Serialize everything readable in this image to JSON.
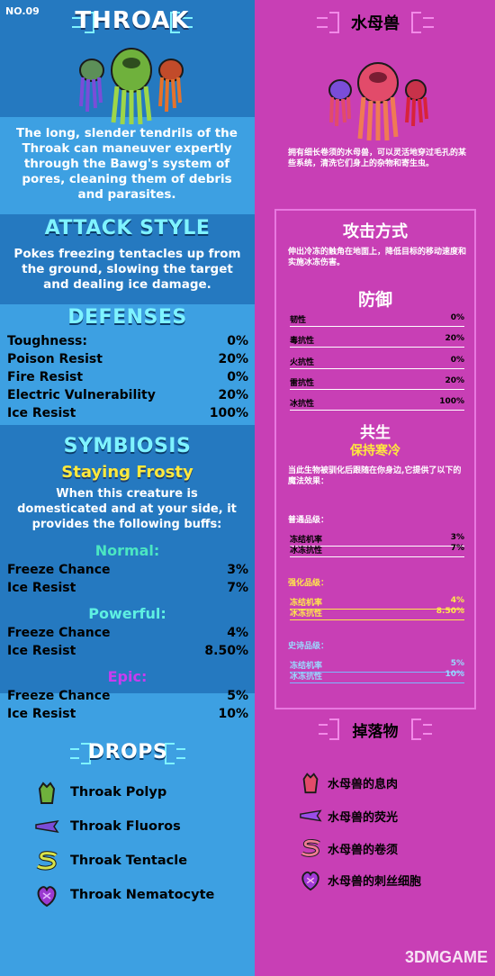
{
  "left": {
    "number": "NO.09",
    "title": "THROAK",
    "description": "The long, slender tendrils of the Throak can maneuver expertly through the Bawg's system of pores, cleaning them of debris and parasites.",
    "attack_style": {
      "heading": "ATTACK STYLE",
      "text": "Pokes freezing tentacles up from the ground, slowing the target and dealing ice damage."
    },
    "defenses": {
      "heading": "DEFENSES",
      "rows": [
        {
          "label": "Toughness:",
          "value": "0%"
        },
        {
          "label": "Poison Resist",
          "value": "20%"
        },
        {
          "label": "Fire Resist",
          "value": "0%"
        },
        {
          "label": "Electric Vulnerability",
          "value": "20%"
        },
        {
          "label": "Ice Resist",
          "value": "100%"
        }
      ]
    },
    "symbiosis": {
      "heading": "SYMBIOSIS",
      "name": "Staying Frosty",
      "text": "When this creature is domesticated and at your side, it provides the following buffs:",
      "tiers": [
        {
          "name": "Normal:",
          "rows": [
            {
              "label": "Freeze Chance",
              "value": "3%"
            },
            {
              "label": "Ice Resist",
              "value": "7%"
            }
          ]
        },
        {
          "name": "Powerful:",
          "rows": [
            {
              "label": "Freeze Chance",
              "value": "4%"
            },
            {
              "label": "Ice Resist",
              "value": "8.50%"
            }
          ]
        },
        {
          "name": "Epic:",
          "rows": [
            {
              "label": "Freeze Chance",
              "value": "5%"
            },
            {
              "label": "Ice Resist",
              "value": "10%"
            }
          ]
        }
      ]
    },
    "drops": {
      "heading": "DROPS",
      "items": [
        {
          "label": "Throak Polyp",
          "icon": "polyp-icon",
          "color": "#6fb13c"
        },
        {
          "label": "Throak Fluoros",
          "icon": "fluoros-icon",
          "color": "#7a4dd8"
        },
        {
          "label": "Throak Tentacle",
          "icon": "tentacle-icon",
          "color": "#d7e34a"
        },
        {
          "label": "Throak Nematocyte",
          "icon": "nematocyte-icon",
          "color": "#9b3ad0"
        }
      ]
    }
  },
  "right": {
    "title": "水母兽",
    "description": "拥有细长卷须的水母兽，可以灵活地穿过毛孔的某些系统，清洗它们身上的杂物和寄生虫。",
    "attack_style": {
      "heading": "攻击方式",
      "text": "伸出冷冻的触角在地面上，降低目标的移动速度和实施冰冻伤害。"
    },
    "defenses": {
      "heading": "防御",
      "rows": [
        {
          "label": "韧性",
          "value": "0%"
        },
        {
          "label": "毒抗性",
          "value": "20%"
        },
        {
          "label": "火抗性",
          "value": "0%"
        },
        {
          "label": "雷抗性",
          "value": "20%"
        },
        {
          "label": "冰抗性",
          "value": "100%"
        }
      ]
    },
    "symbiosis": {
      "heading": "共生",
      "name": "保持寒冷",
      "text": "当此生物被驯化后跟随在你身边,它提供了以下的魔法效果：",
      "tiers": [
        {
          "name": "普通品级：",
          "rows": [
            {
              "label": "冻结机率",
              "value": "3%"
            },
            {
              "label": "冰冻抗性",
              "value": "7%"
            }
          ]
        },
        {
          "name": "强化品级：",
          "rows": [
            {
              "label": "冻结机率",
              "value": "4%"
            },
            {
              "label": "冰冻抗性",
              "value": "8.50%"
            }
          ]
        },
        {
          "name": "史诗品级：",
          "rows": [
            {
              "label": "冻结机率",
              "value": "5%"
            },
            {
              "label": "冰冻抗性",
              "value": "10%"
            }
          ]
        }
      ]
    },
    "drops": {
      "heading": "掉落物",
      "items": [
        {
          "label": "水母兽的息肉",
          "icon": "polyp-icon"
        },
        {
          "label": "水母兽的荧光",
          "icon": "fluoros-icon"
        },
        {
          "label": "水母兽的卷须",
          "icon": "tentacle-icon"
        },
        {
          "label": "水母兽的刺丝细胞",
          "icon": "nematocyte-icon"
        }
      ]
    }
  },
  "watermark": "3DMGAME",
  "colors": {
    "left_bg": "#2f8fd3",
    "right_bg": "#c83fb5",
    "cyan_heading": "#7ff3ff",
    "yellow_heading": "#ffe93d",
    "epic": "#c93cf0"
  }
}
